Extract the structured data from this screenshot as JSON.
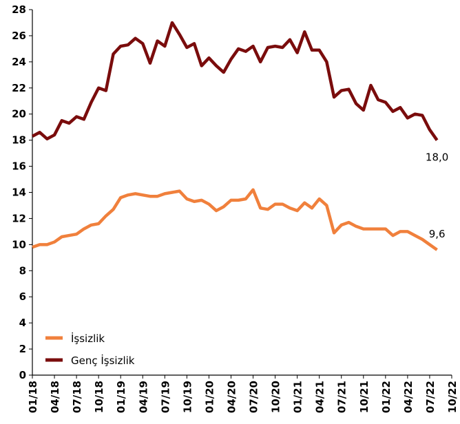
{
  "chart_data": {
    "type": "line",
    "categories": [
      "01/18",
      null,
      null,
      "04/18",
      null,
      null,
      "07/18",
      null,
      null,
      "10/18",
      null,
      null,
      "01/19",
      null,
      null,
      "04/19",
      null,
      null,
      "07/19",
      null,
      null,
      "10/19",
      null,
      null,
      "01/20",
      null,
      null,
      "04/20",
      null,
      null,
      "07/20",
      null,
      null,
      "10/20",
      null,
      null,
      "01/21",
      null,
      null,
      "04/21",
      null,
      null,
      "07/21",
      null,
      null,
      "10/21",
      null,
      null,
      "01/22",
      null,
      null,
      "04/22",
      null,
      null,
      "07/22",
      null,
      null,
      "10/22"
    ],
    "series": [
      {
        "name": "İşsizlik",
        "color": "#f0803c",
        "values": [
          9.8,
          10.0,
          10.0,
          10.2,
          10.6,
          10.7,
          10.8,
          11.2,
          11.5,
          11.6,
          12.2,
          12.7,
          13.6,
          13.8,
          13.9,
          13.8,
          13.7,
          13.7,
          13.9,
          14.0,
          14.1,
          13.5,
          13.3,
          13.4,
          13.1,
          12.6,
          12.9,
          13.4,
          13.4,
          13.5,
          14.2,
          12.8,
          12.7,
          13.1,
          13.1,
          12.8,
          12.6,
          13.2,
          12.8,
          13.5,
          13.0,
          10.9,
          11.5,
          11.7,
          11.4,
          11.2,
          11.2,
          11.2,
          11.2,
          10.7,
          11.0,
          11.0,
          10.7,
          10.4,
          10.0,
          9.6,
          null,
          null
        ],
        "value_labels": [
          null,
          null,
          null,
          null,
          null,
          null,
          null,
          null,
          null,
          null,
          null,
          null,
          null,
          null,
          null,
          null,
          null,
          null,
          null,
          null,
          null,
          null,
          null,
          null,
          null,
          null,
          null,
          null,
          null,
          null,
          null,
          null,
          null,
          null,
          null,
          null,
          null,
          null,
          null,
          null,
          null,
          null,
          null,
          null,
          null,
          null,
          null,
          null,
          null,
          null,
          null,
          null,
          null,
          null,
          null,
          "9,6",
          null,
          null
        ]
      },
      {
        "name": "Genç İşsizlik",
        "color": "#7a0c0c",
        "values": [
          18.3,
          18.6,
          18.1,
          18.4,
          19.5,
          19.3,
          19.8,
          19.6,
          20.9,
          22.0,
          21.8,
          24.6,
          25.2,
          25.3,
          25.8,
          25.4,
          23.9,
          25.6,
          25.2,
          27.0,
          26.1,
          25.1,
          25.4,
          23.7,
          24.3,
          23.7,
          23.2,
          24.2,
          25.0,
          24.8,
          25.2,
          24.0,
          25.1,
          25.2,
          25.1,
          25.7,
          24.7,
          26.3,
          24.9,
          24.9,
          24.0,
          21.3,
          21.8,
          21.9,
          20.8,
          20.3,
          22.2,
          21.1,
          20.9,
          20.2,
          20.5,
          19.7,
          20.0,
          19.9,
          18.8,
          18.0,
          null,
          null
        ],
        "value_labels": [
          null,
          null,
          null,
          null,
          null,
          null,
          null,
          null,
          null,
          null,
          null,
          null,
          null,
          null,
          null,
          null,
          null,
          null,
          null,
          null,
          null,
          null,
          null,
          null,
          null,
          null,
          null,
          null,
          null,
          null,
          null,
          null,
          null,
          null,
          null,
          null,
          null,
          null,
          null,
          null,
          null,
          null,
          null,
          null,
          null,
          null,
          null,
          null,
          null,
          null,
          null,
          null,
          null,
          null,
          null,
          "18,0",
          null,
          null
        ]
      }
    ],
    "ylim": [
      0,
      28
    ],
    "yticks": [
      0,
      2,
      4,
      6,
      8,
      10,
      12,
      14,
      16,
      18,
      20,
      22,
      24,
      26,
      28
    ],
    "legend": "lower left"
  }
}
